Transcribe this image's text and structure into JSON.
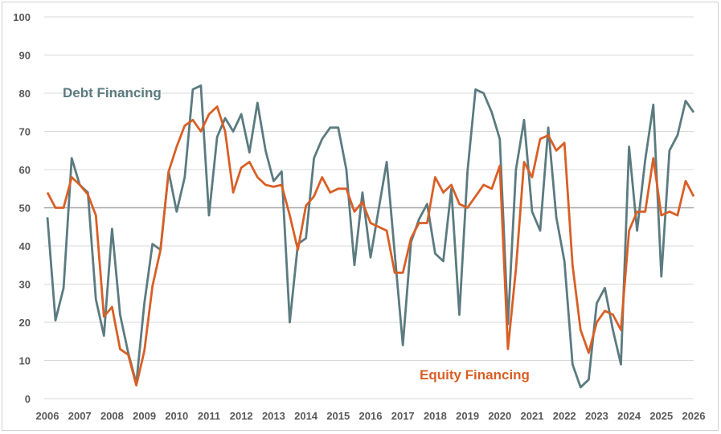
{
  "chart_data": {
    "type": "line",
    "title": "",
    "xlabel": "",
    "ylabel": "",
    "ylim": [
      0,
      100
    ],
    "xlim": [
      2006,
      2026
    ],
    "yticks": [
      "0",
      "10",
      "20",
      "30",
      "40",
      "50",
      "60",
      "70",
      "80",
      "90",
      "100"
    ],
    "xticks": [
      "2006",
      "2007",
      "2008",
      "2009",
      "2010",
      "2011",
      "2012",
      "2013",
      "2014",
      "2015",
      "2016",
      "2017",
      "2018",
      "2019",
      "2020",
      "2021",
      "2022",
      "2023",
      "2024",
      "2025",
      "2026"
    ],
    "grid": true,
    "reference_line": 50,
    "x_frequency": "quarterly",
    "series": [
      {
        "name": "Debt Financing",
        "color": "#5b7b80",
        "values": [
          47.5,
          20.5,
          29,
          63,
          56,
          54,
          26,
          16.5,
          44.5,
          22,
          12,
          4,
          25,
          40.5,
          39,
          59.5,
          49,
          58,
          81,
          82,
          48,
          68.5,
          73.5,
          70,
          74.5,
          64.5,
          77.5,
          65,
          57,
          59.5,
          20,
          40.5,
          42,
          63,
          68,
          71,
          71,
          60,
          35,
          54,
          37,
          49.5,
          62,
          38,
          14,
          41,
          47,
          51,
          38,
          36,
          55,
          22,
          59.5,
          81,
          80,
          75,
          68,
          19.5,
          60,
          73,
          49,
          44,
          71,
          47.5,
          36,
          9,
          3,
          5,
          25,
          29,
          18,
          9,
          66,
          44,
          62.5,
          77,
          32,
          65,
          69,
          78,
          75
        ]
      },
      {
        "name": "Equity Financing",
        "color": "#d95f26",
        "values": [
          54,
          50,
          50,
          58,
          56,
          53.5,
          48,
          21.5,
          24,
          13,
          11.5,
          3.5,
          12.5,
          29.5,
          39,
          59.5,
          66,
          71.5,
          73,
          70,
          74.5,
          76.5,
          70,
          54,
          60.5,
          62,
          58,
          56,
          55.5,
          56,
          48,
          39,
          50.5,
          53,
          58,
          54,
          55,
          55,
          49,
          51.5,
          46,
          45,
          44,
          33,
          33,
          42,
          46,
          46,
          58,
          54,
          56,
          51,
          50,
          53,
          56,
          55,
          61,
          13,
          34,
          62,
          58,
          68,
          69,
          65,
          67,
          35,
          18,
          12,
          20,
          23,
          22,
          18,
          44,
          49,
          49,
          63,
          48,
          49,
          48,
          57,
          53
        ]
      }
    ]
  },
  "colors": {
    "grid": "#d9d9d9",
    "reference": "#a6a6a6",
    "tick_text": "#595959",
    "border": "#d0d0d0"
  }
}
